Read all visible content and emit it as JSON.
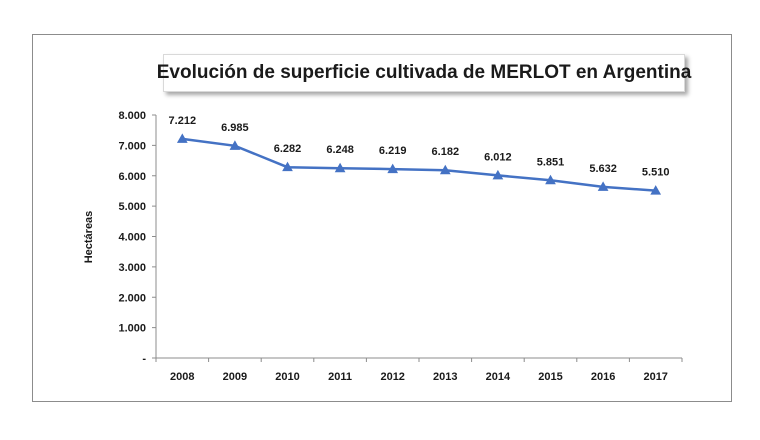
{
  "chart_data": {
    "type": "line",
    "title": "Evolución de superficie cultivada de MERLOT en Argentina",
    "xlabel": "",
    "ylabel": "Hectáreas",
    "categories": [
      "2008",
      "2009",
      "2010",
      "2011",
      "2012",
      "2013",
      "2014",
      "2015",
      "2016",
      "2017"
    ],
    "series": [
      {
        "name": "Hectáreas",
        "values": [
          7212,
          6985,
          6282,
          6248,
          6219,
          6182,
          6012,
          5851,
          5632,
          5510
        ],
        "labels": [
          "7.212",
          "6.985",
          "6.282",
          "6.248",
          "6.219",
          "6.182",
          "6.012",
          "5.851",
          "5.632",
          "5.510"
        ],
        "color": "#4472c4"
      }
    ],
    "ylim": [
      0,
      8000
    ],
    "yticks": [
      0,
      1000,
      2000,
      3000,
      4000,
      5000,
      6000,
      7000,
      8000
    ],
    "ytick_labels": [
      "-",
      "1.000",
      "2.000",
      "3.000",
      "4.000",
      "5.000",
      "6.000",
      "7.000",
      "8.000"
    ],
    "grid": false,
    "legend": "none"
  }
}
